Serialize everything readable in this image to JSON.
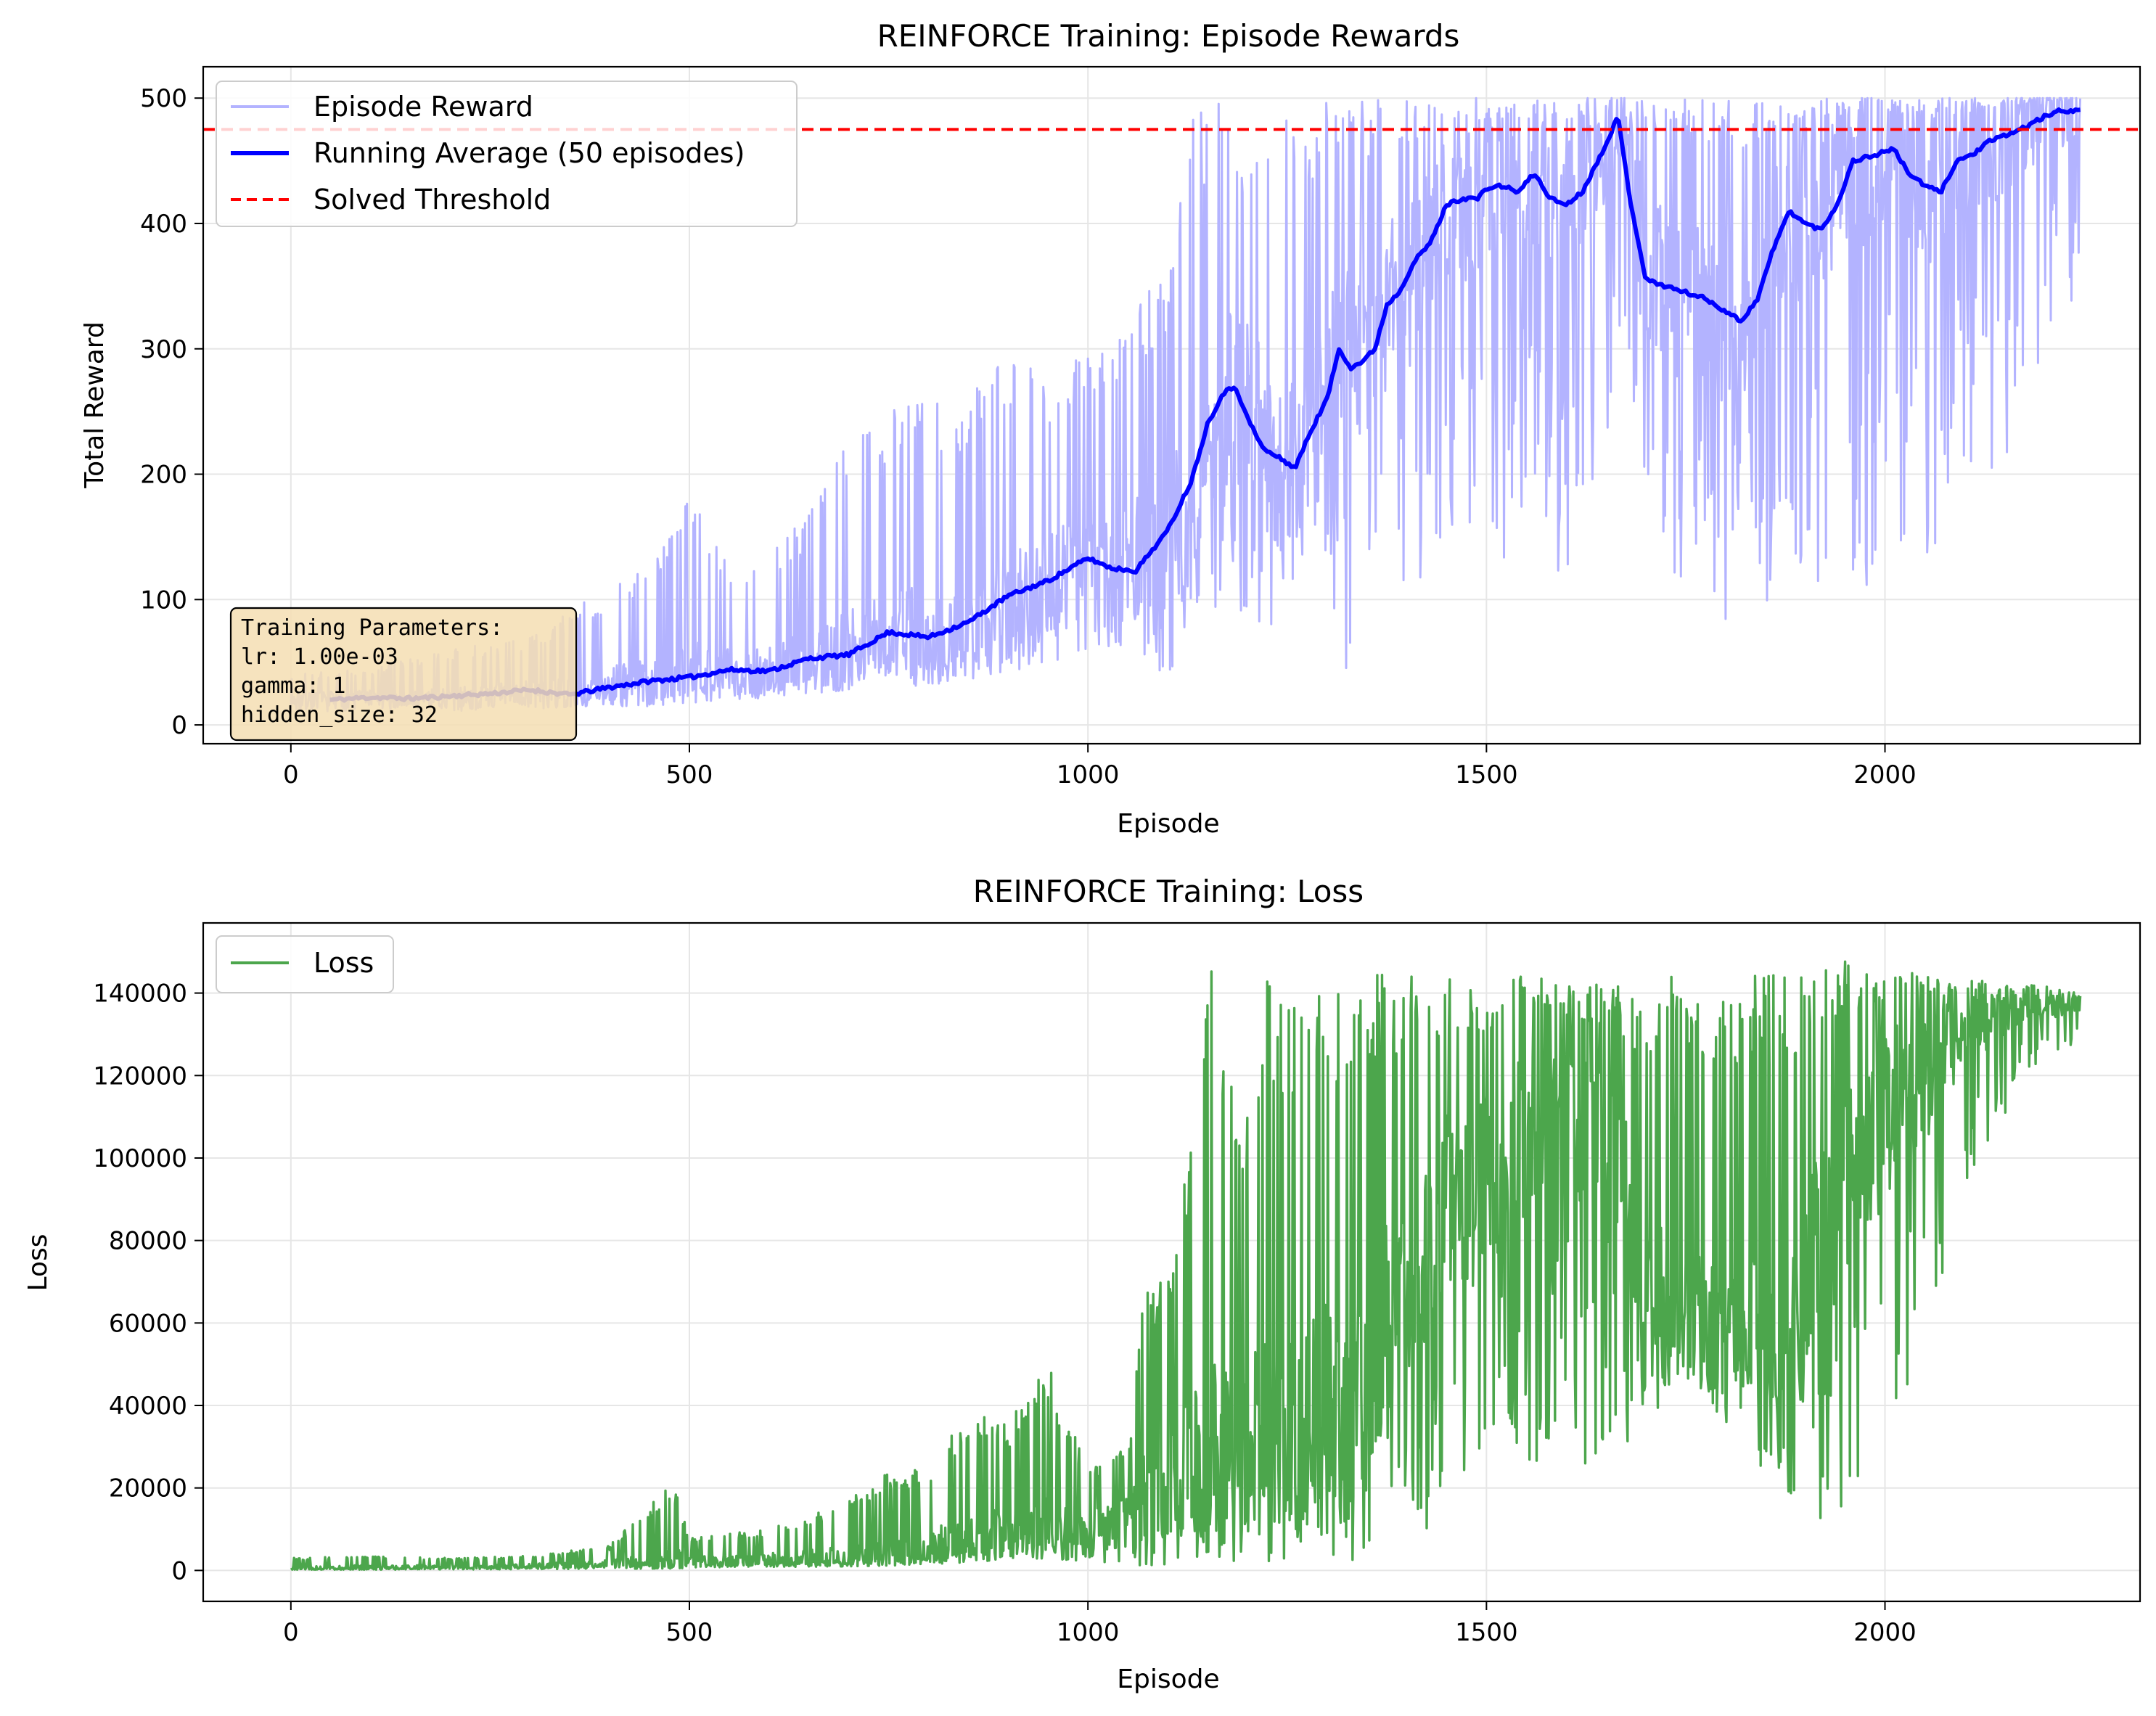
{
  "chart_data": [
    {
      "type": "line",
      "title": "REINFORCE Training: Episode Rewards",
      "xlabel": "Episode",
      "ylabel": "Total Reward",
      "xlim": [
        -110,
        2320
      ],
      "ylim": [
        -15,
        525
      ],
      "xticks": [
        0,
        500,
        1000,
        1500,
        2000
      ],
      "yticks": [
        0,
        100,
        200,
        300,
        400,
        500
      ],
      "grid": true,
      "legend_position": "upper-left",
      "colors": {
        "episode": "#b3b3ff",
        "running": "#0000ff",
        "threshold": "#ff0000"
      },
      "series": [
        {
          "name": "Episode Reward",
          "style": "line",
          "x": [
            0,
            100,
            200,
            300,
            360,
            400,
            450,
            500,
            550,
            600,
            650,
            700,
            750,
            800,
            850,
            900,
            950,
            1000,
            1050,
            1100,
            1130,
            1150,
            1175,
            1200,
            1225,
            1250,
            1275,
            1300,
            1325,
            1350,
            1375,
            1400,
            1425,
            1450,
            1475,
            1500,
            1525,
            1550,
            1575,
            1600,
            1625,
            1650,
            1665,
            1680,
            1700,
            1725,
            1750,
            1775,
            1800,
            1820,
            1850,
            1875,
            1900,
            1925,
            1950,
            1975,
            2000,
            2025,
            2050,
            2075,
            2100,
            2125,
            2150,
            2175,
            2200,
            2225,
            2245
          ],
          "y_mid": [
            20,
            22,
            21,
            26,
            25,
            30,
            33,
            38,
            44,
            43,
            50,
            56,
            70,
            70,
            80,
            95,
            110,
            128,
            127,
            150,
            180,
            220,
            265,
            255,
            225,
            205,
            240,
            290,
            285,
            300,
            335,
            350,
            380,
            415,
            415,
            425,
            428,
            430,
            420,
            415,
            430,
            470,
            485,
            440,
            360,
            350,
            345,
            340,
            330,
            328,
            380,
            410,
            400,
            410,
            440,
            450,
            455,
            445,
            430,
            440,
            460,
            465,
            470,
            480,
            490,
            490,
            490
          ],
          "y_low": [
            10,
            12,
            10,
            12,
            15,
            15,
            15,
            18,
            18,
            20,
            25,
            28,
            32,
            30,
            35,
            40,
            45,
            50,
            50,
            40,
            60,
            100,
            80,
            90,
            70,
            60,
            70,
            120,
            14,
            100,
            110,
            80,
            120,
            160,
            140,
            150,
            130,
            160,
            140,
            90,
            140,
            180,
            300,
            200,
            120,
            100,
            90,
            120,
            70,
            90,
            70,
            150,
            100,
            60,
            120,
            100,
            150,
            140,
            120,
            150,
            180,
            200,
            150,
            250,
            300,
            330,
            330
          ],
          "y_high": [
            40,
            45,
            60,
            70,
            95,
            110,
            130,
            185,
            130,
            140,
            170,
            230,
            250,
            260,
            265,
            295,
            280,
            300,
            330,
            360,
            500,
            500,
            500,
            460,
            480,
            500,
            490,
            500,
            500,
            500,
            500,
            500,
            500,
            500,
            500,
            500,
            500,
            500,
            500,
            500,
            500,
            500,
            500,
            500,
            500,
            500,
            500,
            500,
            500,
            500,
            500,
            500,
            500,
            500,
            500,
            500,
            500,
            500,
            500,
            500,
            500,
            500,
            500,
            500,
            500,
            500,
            500
          ]
        },
        {
          "name": "Running Average (50 episodes)",
          "style": "line",
          "x": [
            49,
            100,
            150,
            200,
            250,
            300,
            350,
            400,
            450,
            500,
            550,
            600,
            650,
            700,
            750,
            800,
            850,
            900,
            950,
            1000,
            1030,
            1060,
            1100,
            1130,
            1150,
            1170,
            1185,
            1200,
            1220,
            1240,
            1260,
            1280,
            1300,
            1315,
            1330,
            1345,
            1360,
            1375,
            1390,
            1410,
            1430,
            1450,
            1470,
            1490,
            1500,
            1520,
            1540,
            1560,
            1580,
            1600,
            1620,
            1640,
            1665,
            1680,
            1700,
            1725,
            1750,
            1775,
            1800,
            1820,
            1840,
            1860,
            1880,
            1900,
            1920,
            1940,
            1960,
            1990,
            2010,
            2030,
            2050,
            2070,
            2090,
            2110,
            2130,
            2150,
            2170,
            2200,
            2220,
            2245
          ],
          "y": [
            20,
            22,
            21,
            23,
            25,
            28,
            24,
            30,
            35,
            38,
            44,
            43,
            53,
            56,
            74,
            70,
            82,
            103,
            115,
            133,
            125,
            123,
            155,
            195,
            240,
            265,
            270,
            245,
            220,
            213,
            205,
            235,
            260,
            300,
            285,
            290,
            300,
            335,
            345,
            370,
            385,
            415,
            420,
            420,
            428,
            430,
            425,
            440,
            420,
            415,
            425,
            450,
            485,
            420,
            355,
            350,
            345,
            340,
            330,
            322,
            340,
            380,
            410,
            400,
            395,
            415,
            450,
            455,
            460,
            440,
            430,
            425,
            450,
            455,
            465,
            470,
            475,
            485,
            490,
            490
          ]
        },
        {
          "name": "Solved Threshold",
          "style": "dashed",
          "y_constant": 475
        }
      ],
      "annotation": {
        "position": "lower-left",
        "lines": [
          "Training Parameters:",
          "lr: 1.00e-03",
          "gamma: 1",
          "hidden_size: 32"
        ]
      }
    },
    {
      "type": "line",
      "title": "REINFORCE Training: Loss",
      "xlabel": "Episode",
      "ylabel": "Loss",
      "xlim": [
        -110,
        2320
      ],
      "ylim": [
        -7500,
        157000
      ],
      "xticks": [
        0,
        500,
        1000,
        1500,
        2000
      ],
      "yticks": [
        0,
        20000,
        40000,
        60000,
        80000,
        100000,
        120000,
        140000
      ],
      "grid": true,
      "legend_position": "upper-left",
      "colors": {
        "loss": "#4ca64c"
      },
      "series": [
        {
          "name": "Loss",
          "style": "line",
          "x": [
            0,
            100,
            200,
            300,
            400,
            480,
            500,
            600,
            700,
            750,
            800,
            850,
            900,
            950,
            1000,
            1050,
            1075,
            1100,
            1125,
            1150,
            1175,
            1200,
            1225,
            1250,
            1275,
            1300,
            1325,
            1350,
            1375,
            1400,
            1425,
            1450,
            1475,
            1500,
            1525,
            1550,
            1575,
            1600,
            1625,
            1650,
            1675,
            1700,
            1725,
            1750,
            1775,
            1800,
            1825,
            1850,
            1875,
            1900,
            1925,
            1950,
            1975,
            2000,
            2025,
            2050,
            2075,
            2100,
            2125,
            2150,
            2175,
            2200,
            2225,
            2245
          ],
          "y_low": [
            200,
            200,
            200,
            300,
            400,
            500,
            600,
            800,
            1000,
            1200,
            1500,
            2000,
            2500,
            3000,
            2000,
            1000,
            1000,
            1000,
            2000,
            3000,
            2000,
            2000,
            2000,
            1000,
            3000,
            5000,
            500,
            5000,
            8000,
            15000,
            10000,
            20000,
            5000,
            15000,
            30000,
            20000,
            30000,
            40000,
            20000,
            25000,
            30000,
            35000,
            40000,
            45000,
            40000,
            35000,
            38000,
            20000,
            15000,
            10000,
            8000,
            15000,
            20000,
            30000,
            40000,
            55000,
            70000,
            90000,
            100000,
            110000,
            120000,
            125000,
            125000,
            125000
          ],
          "y_mid": [
            500,
            700,
            800,
            1000,
            1500,
            2500,
            2000,
            2500,
            3500,
            4500,
            6000,
            8000,
            9000,
            10000,
            10000,
            15000,
            18000,
            20000,
            25000,
            28000,
            30000,
            30000,
            35000,
            30000,
            35000,
            40000,
            30000,
            50000,
            60000,
            70000,
            75000,
            90000,
            90000,
            95000,
            100000,
            105000,
            110000,
            110000,
            105000,
            100000,
            90000,
            65000,
            65000,
            65000,
            60000,
            55000,
            60000,
            50000,
            45000,
            70000,
            80000,
            95000,
            100000,
            110000,
            115000,
            120000,
            125000,
            130000,
            133000,
            135000,
            136000,
            137000,
            137000,
            137000
          ],
          "y_high": [
            3000,
            3500,
            3000,
            3500,
            6000,
            22000,
            8000,
            10000,
            17000,
            24000,
            25000,
            39000,
            36000,
            50000,
            25000,
            30000,
            75000,
            70000,
            100000,
            147000,
            140000,
            110000,
            143000,
            140000,
            145000,
            147000,
            140000,
            145000,
            145000,
            145000,
            144000,
            145000,
            142000,
            140000,
            145000,
            146000,
            144000,
            142000,
            141000,
            143000,
            142000,
            142000,
            145000,
            144000,
            145000,
            143000,
            144000,
            146000,
            146000,
            147000,
            146000,
            149000,
            147000,
            148000,
            146000,
            145000,
            144000,
            143000,
            143000,
            142000,
            142000,
            142000,
            141000,
            140000
          ]
        }
      ]
    }
  ]
}
